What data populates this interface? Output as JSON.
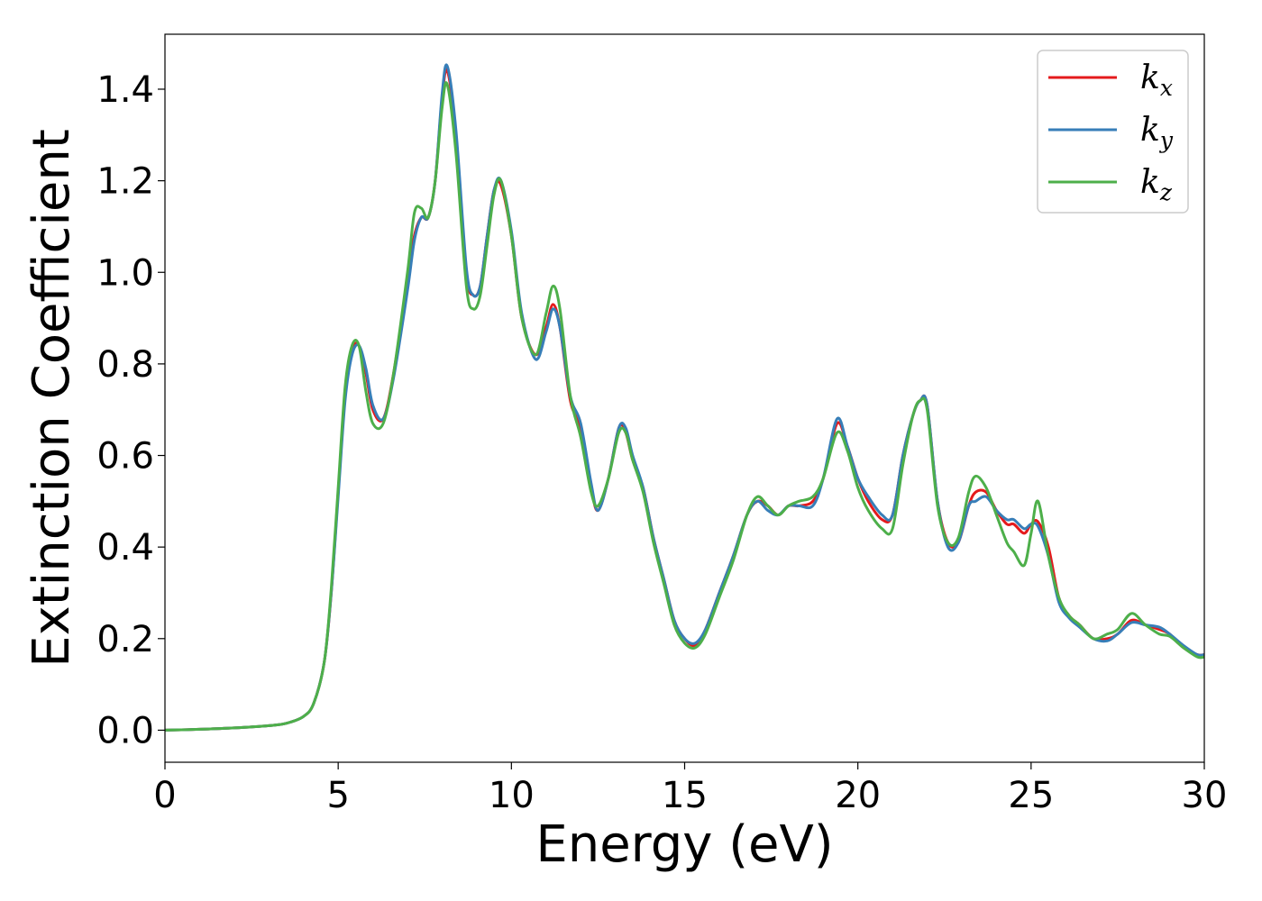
{
  "chart_data": {
    "type": "line",
    "title": "",
    "xlabel": "Energy (eV)",
    "ylabel": "Extinction Coefficient",
    "xlim": [
      0,
      30
    ],
    "ylim": [
      -0.07,
      1.52
    ],
    "xticks": [
      0,
      5,
      10,
      15,
      20,
      25,
      30
    ],
    "xtick_labels": [
      "0",
      "5",
      "10",
      "15",
      "20",
      "25",
      "30"
    ],
    "yticks": [
      0.0,
      0.2,
      0.4,
      0.6,
      0.8,
      1.0,
      1.2,
      1.4
    ],
    "ytick_labels": [
      "0.0",
      "0.2",
      "0.4",
      "0.6",
      "0.8",
      "1.0",
      "1.2",
      "1.4"
    ],
    "grid": false,
    "legend_position": "top-right",
    "series": [
      {
        "name": "k_x",
        "label_main": "k",
        "label_sub": "x",
        "color": "#e41a1c",
        "x": [
          0,
          1,
          2,
          3,
          3.5,
          4,
          4.3,
          4.6,
          4.8,
          5.0,
          5.2,
          5.4,
          5.6,
          5.8,
          6.0,
          6.3,
          6.6,
          7.0,
          7.2,
          7.4,
          7.6,
          7.8,
          8.0,
          8.15,
          8.4,
          8.7,
          8.9,
          9.1,
          9.3,
          9.5,
          9.7,
          10.0,
          10.3,
          10.7,
          11.0,
          11.2,
          11.4,
          11.7,
          12.0,
          12.3,
          12.5,
          12.8,
          13.1,
          13.3,
          13.5,
          13.8,
          14.1,
          14.4,
          14.7,
          15.0,
          15.3,
          15.6,
          16.0,
          16.4,
          16.8,
          17.1,
          17.4,
          17.7,
          18.0,
          18.3,
          18.7,
          19.0,
          19.4,
          19.7,
          20.0,
          20.3,
          20.7,
          21.0,
          21.3,
          21.6,
          21.8,
          22.0,
          22.3,
          22.6,
          22.9,
          23.2,
          23.4,
          23.7,
          24.0,
          24.3,
          24.5,
          24.8,
          25.0,
          25.2,
          25.5,
          25.8,
          26.1,
          26.4,
          26.8,
          27.2,
          27.5,
          27.9,
          28.3,
          28.7,
          29.0,
          29.4,
          29.8,
          30.0
        ],
        "values": [
          0.0,
          0.002,
          0.005,
          0.01,
          0.015,
          0.03,
          0.06,
          0.15,
          0.3,
          0.52,
          0.73,
          0.83,
          0.84,
          0.78,
          0.7,
          0.68,
          0.78,
          0.98,
          1.08,
          1.12,
          1.12,
          1.2,
          1.38,
          1.44,
          1.3,
          1.0,
          0.95,
          0.97,
          1.08,
          1.18,
          1.19,
          1.08,
          0.9,
          0.82,
          0.88,
          0.93,
          0.88,
          0.72,
          0.66,
          0.53,
          0.48,
          0.55,
          0.66,
          0.65,
          0.59,
          0.53,
          0.42,
          0.33,
          0.24,
          0.2,
          0.185,
          0.22,
          0.3,
          0.38,
          0.47,
          0.5,
          0.49,
          0.47,
          0.49,
          0.49,
          0.5,
          0.55,
          0.67,
          0.62,
          0.55,
          0.5,
          0.46,
          0.47,
          0.6,
          0.69,
          0.72,
          0.71,
          0.5,
          0.41,
          0.41,
          0.49,
          0.52,
          0.52,
          0.48,
          0.45,
          0.45,
          0.43,
          0.45,
          0.455,
          0.4,
          0.29,
          0.25,
          0.23,
          0.2,
          0.2,
          0.21,
          0.24,
          0.23,
          0.22,
          0.21,
          0.18,
          0.165,
          0.165
        ]
      },
      {
        "name": "k_y",
        "label_main": "k",
        "label_sub": "y",
        "color": "#377eb8",
        "x": [
          0,
          1,
          2,
          3,
          3.5,
          4,
          4.3,
          4.6,
          4.8,
          5.0,
          5.2,
          5.4,
          5.6,
          5.8,
          6.0,
          6.3,
          6.6,
          7.0,
          7.2,
          7.4,
          7.6,
          7.8,
          8.0,
          8.15,
          8.4,
          8.7,
          8.9,
          9.1,
          9.3,
          9.5,
          9.7,
          10.0,
          10.3,
          10.7,
          11.0,
          11.2,
          11.4,
          11.7,
          12.0,
          12.3,
          12.5,
          12.8,
          13.1,
          13.3,
          13.5,
          13.8,
          14.1,
          14.4,
          14.7,
          15.0,
          15.3,
          15.6,
          16.0,
          16.4,
          16.8,
          17.1,
          17.4,
          17.7,
          18.0,
          18.3,
          18.7,
          19.0,
          19.4,
          19.7,
          20.0,
          20.3,
          20.7,
          21.0,
          21.3,
          21.6,
          21.8,
          22.0,
          22.3,
          22.6,
          22.9,
          23.2,
          23.4,
          23.7,
          24.0,
          24.3,
          24.5,
          24.8,
          25.0,
          25.2,
          25.5,
          25.8,
          26.1,
          26.4,
          26.8,
          27.2,
          27.5,
          27.9,
          28.3,
          28.7,
          29.0,
          29.4,
          29.8,
          30.0
        ],
        "values": [
          0.0,
          0.002,
          0.005,
          0.01,
          0.015,
          0.03,
          0.06,
          0.15,
          0.3,
          0.51,
          0.72,
          0.82,
          0.84,
          0.79,
          0.71,
          0.68,
          0.77,
          0.96,
          1.07,
          1.12,
          1.12,
          1.2,
          1.39,
          1.45,
          1.31,
          1.01,
          0.95,
          0.97,
          1.08,
          1.18,
          1.2,
          1.09,
          0.91,
          0.81,
          0.87,
          0.92,
          0.88,
          0.73,
          0.67,
          0.54,
          0.48,
          0.55,
          0.66,
          0.66,
          0.6,
          0.53,
          0.42,
          0.33,
          0.24,
          0.2,
          0.19,
          0.22,
          0.3,
          0.38,
          0.47,
          0.5,
          0.48,
          0.47,
          0.49,
          0.49,
          0.49,
          0.55,
          0.68,
          0.62,
          0.55,
          0.51,
          0.47,
          0.47,
          0.6,
          0.69,
          0.72,
          0.71,
          0.5,
          0.4,
          0.41,
          0.49,
          0.5,
          0.51,
          0.48,
          0.46,
          0.46,
          0.44,
          0.45,
          0.445,
          0.38,
          0.28,
          0.245,
          0.225,
          0.2,
          0.195,
          0.21,
          0.235,
          0.23,
          0.225,
          0.21,
          0.185,
          0.165,
          0.165
        ]
      },
      {
        "name": "k_z",
        "label_main": "k",
        "label_sub": "z",
        "color": "#4daf4a",
        "x": [
          0,
          1,
          2,
          3,
          3.5,
          4,
          4.3,
          4.6,
          4.8,
          5.0,
          5.2,
          5.4,
          5.6,
          5.8,
          6.0,
          6.3,
          6.6,
          7.0,
          7.2,
          7.4,
          7.6,
          7.8,
          8.0,
          8.15,
          8.4,
          8.7,
          8.9,
          9.1,
          9.3,
          9.5,
          9.7,
          10.0,
          10.3,
          10.7,
          11.0,
          11.2,
          11.4,
          11.7,
          12.0,
          12.3,
          12.5,
          12.8,
          13.1,
          13.3,
          13.5,
          13.8,
          14.1,
          14.4,
          14.7,
          15.0,
          15.3,
          15.6,
          16.0,
          16.4,
          16.8,
          17.1,
          17.4,
          17.7,
          18.0,
          18.3,
          18.7,
          19.0,
          19.4,
          19.7,
          20.0,
          20.3,
          20.7,
          21.0,
          21.3,
          21.6,
          21.8,
          22.0,
          22.3,
          22.6,
          22.9,
          23.2,
          23.4,
          23.7,
          24.0,
          24.3,
          24.5,
          24.8,
          25.0,
          25.2,
          25.5,
          25.8,
          26.1,
          26.4,
          26.8,
          27.2,
          27.5,
          27.9,
          28.3,
          28.7,
          29.0,
          29.4,
          29.8,
          30.0
        ],
        "values": [
          0.0,
          0.002,
          0.005,
          0.01,
          0.015,
          0.03,
          0.06,
          0.15,
          0.31,
          0.53,
          0.75,
          0.84,
          0.84,
          0.74,
          0.67,
          0.67,
          0.78,
          1.0,
          1.13,
          1.14,
          1.12,
          1.2,
          1.36,
          1.41,
          1.26,
          0.97,
          0.92,
          0.95,
          1.06,
          1.17,
          1.2,
          1.08,
          0.9,
          0.82,
          0.91,
          0.97,
          0.92,
          0.73,
          0.64,
          0.52,
          0.49,
          0.55,
          0.65,
          0.65,
          0.59,
          0.52,
          0.41,
          0.32,
          0.23,
          0.19,
          0.18,
          0.21,
          0.29,
          0.37,
          0.47,
          0.51,
          0.49,
          0.47,
          0.49,
          0.5,
          0.51,
          0.55,
          0.65,
          0.61,
          0.53,
          0.48,
          0.44,
          0.44,
          0.58,
          0.69,
          0.72,
          0.7,
          0.49,
          0.41,
          0.42,
          0.52,
          0.555,
          0.53,
          0.47,
          0.41,
          0.39,
          0.36,
          0.43,
          0.5,
          0.38,
          0.29,
          0.25,
          0.23,
          0.2,
          0.21,
          0.22,
          0.255,
          0.23,
          0.21,
          0.205,
          0.18,
          0.16,
          0.16
        ]
      }
    ]
  }
}
